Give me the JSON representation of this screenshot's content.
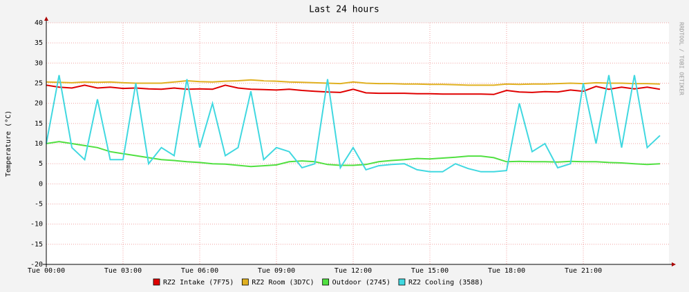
{
  "chart_data": {
    "type": "line",
    "title": "Last 24 hours",
    "y_label": "Temperature (°C)",
    "credit": "RRDTOOL / TOBI OETIKER",
    "x": [
      0,
      0.5,
      1,
      1.5,
      2,
      2.5,
      3,
      3.5,
      4,
      4.5,
      5,
      5.5,
      6,
      6.5,
      7,
      7.5,
      8,
      8.5,
      9,
      9.5,
      10,
      10.5,
      11,
      11.5,
      12,
      12.5,
      13,
      13.5,
      14,
      14.5,
      15,
      15.5,
      16,
      16.5,
      17,
      17.5,
      18,
      18.5,
      19,
      19.5,
      20,
      20.5,
      21,
      21.5,
      22,
      22.5,
      23,
      23.5,
      24
    ],
    "xlim": [
      0,
      24.35
    ],
    "xticks": [
      {
        "value": 0,
        "label": "Tue 00:00"
      },
      {
        "value": 3,
        "label": "Tue 03:00"
      },
      {
        "value": 6,
        "label": "Tue 06:00"
      },
      {
        "value": 9,
        "label": "Tue 09:00"
      },
      {
        "value": 12,
        "label": "Tue 12:00"
      },
      {
        "value": 15,
        "label": "Tue 15:00"
      },
      {
        "value": 18,
        "label": "Tue 18:00"
      },
      {
        "value": 21,
        "label": "Tue 21:00"
      }
    ],
    "ylim": [
      -20,
      40
    ],
    "yticks": [
      -20,
      -15,
      -10,
      -5,
      0,
      5,
      10,
      15,
      20,
      25,
      30,
      35,
      40
    ],
    "grid": true,
    "series": [
      {
        "name": "RZ2 Intake (7F75)",
        "color": "#e00000",
        "values": [
          24.5,
          24,
          23.8,
          24.5,
          23.8,
          24,
          23.7,
          23.8,
          23.6,
          23.5,
          23.8,
          23.5,
          23.6,
          23.5,
          24.5,
          23.8,
          23.5,
          23.4,
          23.3,
          23.5,
          23.2,
          23,
          22.8,
          22.7,
          23.5,
          22.6,
          22.5,
          22.5,
          22.5,
          22.4,
          22.4,
          22.3,
          22.3,
          22.3,
          22.3,
          22.2,
          23.2,
          22.8,
          22.7,
          22.9,
          22.8,
          23.3,
          23,
          24.2,
          23.5,
          24,
          23.6,
          24,
          23.5
        ]
      },
      {
        "name": "RZ2 Room (3D7C)",
        "color": "#e0b020",
        "values": [
          25.3,
          25.2,
          25.1,
          25.3,
          25.2,
          25.3,
          25.1,
          25,
          25,
          25,
          25.3,
          25.6,
          25.4,
          25.3,
          25.5,
          25.6,
          25.8,
          25.6,
          25.5,
          25.3,
          25.2,
          25.1,
          25,
          24.9,
          25.3,
          25,
          24.9,
          24.9,
          24.8,
          24.8,
          24.7,
          24.7,
          24.6,
          24.5,
          24.5,
          24.5,
          24.8,
          24.7,
          24.8,
          24.8,
          24.9,
          25,
          24.9,
          25.1,
          25,
          25,
          24.9,
          24.9,
          24.8
        ]
      },
      {
        "name": "Outdoor (2745)",
        "color": "#50e040",
        "values": [
          10,
          10.5,
          10,
          9.5,
          9,
          8,
          7.5,
          7,
          6.5,
          6,
          5.8,
          5.5,
          5.3,
          5,
          4.9,
          4.6,
          4.3,
          4.5,
          4.7,
          5.5,
          5.7,
          5.5,
          4.8,
          4.6,
          4.6,
          4.8,
          5.5,
          5.8,
          6,
          6.3,
          6.2,
          6.4,
          6.6,
          6.9,
          6.9,
          6.5,
          5.5,
          5.6,
          5.5,
          5.5,
          5.4,
          5.6,
          5.5,
          5.5,
          5.3,
          5.2,
          5,
          4.8,
          5
        ]
      },
      {
        "name": "RZ2 Cooling (3588)",
        "color": "#40d8e0",
        "values": [
          10,
          27,
          9,
          6,
          21,
          6,
          6,
          25,
          5,
          9,
          7,
          26,
          9,
          20,
          7,
          9,
          23,
          6,
          9,
          8,
          4,
          5,
          26,
          4,
          9,
          3.5,
          4.5,
          4.8,
          5,
          3.5,
          3,
          3,
          5,
          3.8,
          3,
          3,
          3.3,
          20,
          8,
          10,
          4,
          5,
          25,
          10,
          27,
          9,
          27,
          9,
          12
        ]
      }
    ]
  }
}
